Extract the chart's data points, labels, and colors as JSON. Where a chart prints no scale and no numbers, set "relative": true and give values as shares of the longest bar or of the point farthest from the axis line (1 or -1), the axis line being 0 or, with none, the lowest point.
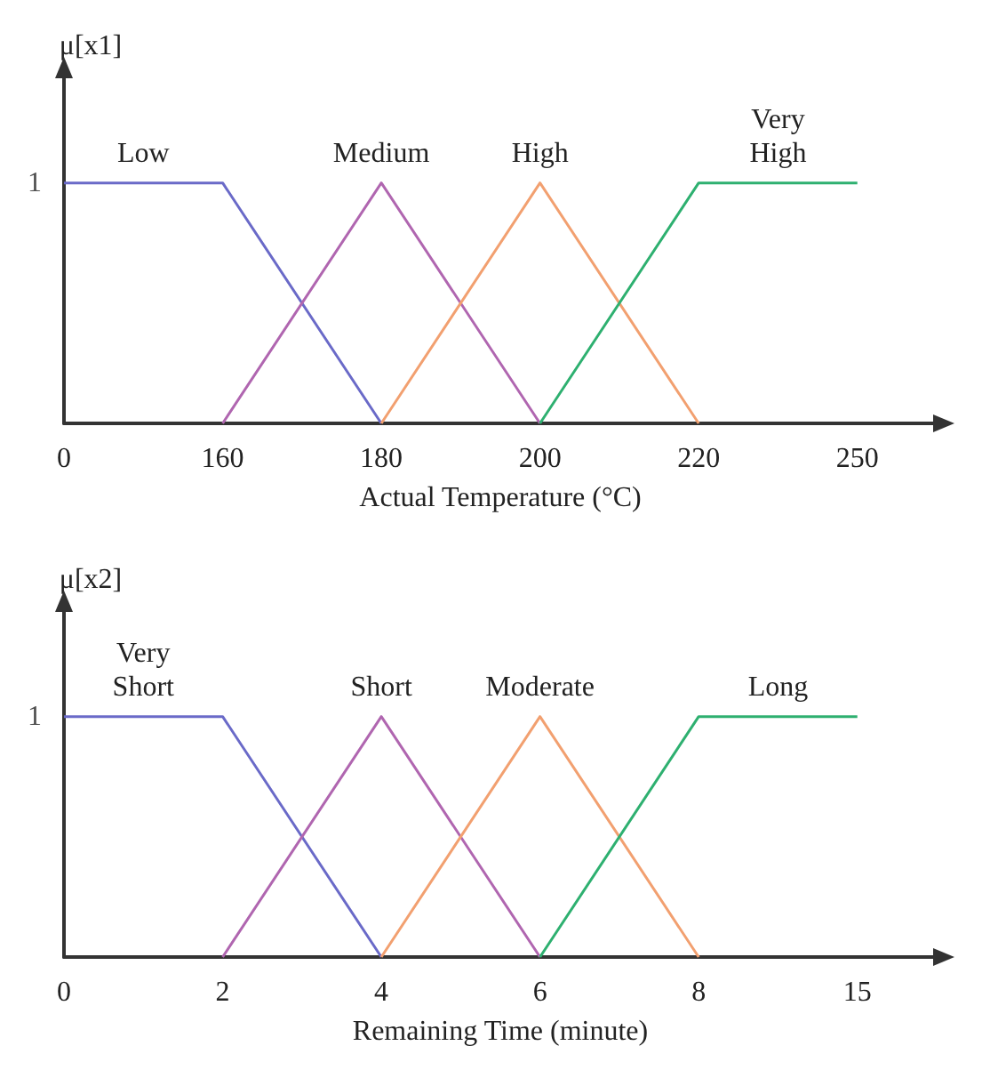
{
  "chart_data": [
    {
      "type": "line",
      "xlabel": "Actual Temperature (°C)",
      "ylabel": "μ[x1]",
      "categories": [
        "0",
        "160",
        "180",
        "200",
        "220",
        "250"
      ],
      "relative": true,
      "annotations": [
        "1"
      ],
      "grid": false,
      "legend": false,
      "marker": "none",
      "line_style": "solid",
      "series": [
        {
          "name": "Low",
          "color": "#6a6ac8",
          "values": [
            1,
            1,
            0,
            null,
            null,
            null
          ]
        },
        {
          "name": "Medium",
          "color": "#b066b0",
          "values": [
            null,
            0,
            1,
            0,
            null,
            null
          ]
        },
        {
          "name": "High",
          "color": "#f2a070",
          "values": [
            null,
            null,
            0,
            1,
            0,
            null
          ]
        },
        {
          "name": "Very High",
          "color": "#2eb070",
          "values": [
            null,
            null,
            null,
            0,
            1,
            1
          ]
        }
      ]
    },
    {
      "type": "line",
      "xlabel": "Remaining Time (minute)",
      "ylabel": "μ[x2]",
      "categories": [
        "0",
        "2",
        "4",
        "6",
        "8",
        "15"
      ],
      "relative": true,
      "annotations": [
        "1"
      ],
      "grid": false,
      "legend": false,
      "marker": "none",
      "line_style": "solid",
      "series": [
        {
          "name": "Very Short",
          "color": "#6a6ac8",
          "values": [
            1,
            1,
            0,
            null,
            null,
            null
          ]
        },
        {
          "name": "Short",
          "color": "#b066b0",
          "values": [
            null,
            0,
            1,
            0,
            null,
            null
          ]
        },
        {
          "name": "Moderate",
          "color": "#f2a070",
          "values": [
            null,
            null,
            0,
            1,
            0,
            null
          ]
        },
        {
          "name": "Long",
          "color": "#2eb070",
          "values": [
            null,
            null,
            null,
            0,
            1,
            1
          ]
        }
      ]
    }
  ]
}
